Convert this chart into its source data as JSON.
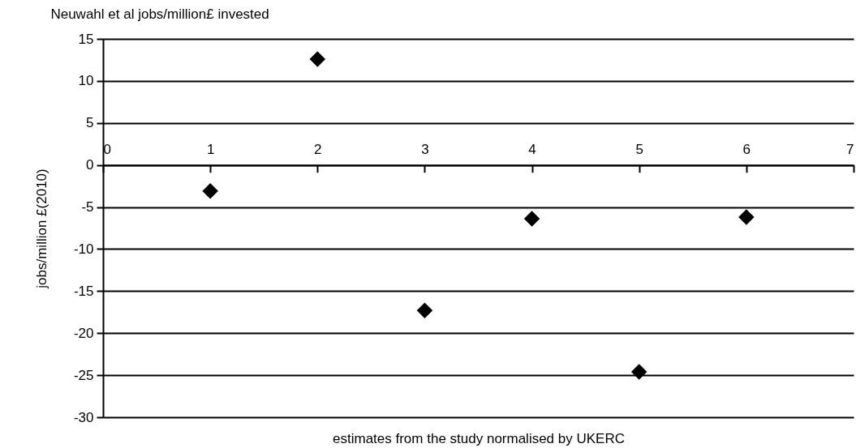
{
  "chart_data": {
    "type": "scatter",
    "title": "Neuwahl et al jobs/million£ invested",
    "xlabel": "estimates from the study normalised by UKERC",
    "ylabel": "jobs/million £(2010)",
    "x": [
      1,
      2,
      3,
      4,
      5,
      6
    ],
    "series": [
      {
        "color": "#000000",
        "values": [
          -3.1,
          12.6,
          -17.3,
          -6.4,
          -24.6,
          -6.2
        ]
      }
    ],
    "xlim": [
      0,
      7
    ],
    "xticks": [
      0,
      1,
      2,
      3,
      4,
      5,
      6,
      7
    ],
    "ylim": [
      -30,
      15
    ],
    "yticks": [
      -30,
      -25,
      -20,
      -15,
      -10,
      -5,
      0,
      5,
      10,
      15
    ],
    "grid": "y",
    "marker": "diamond"
  }
}
